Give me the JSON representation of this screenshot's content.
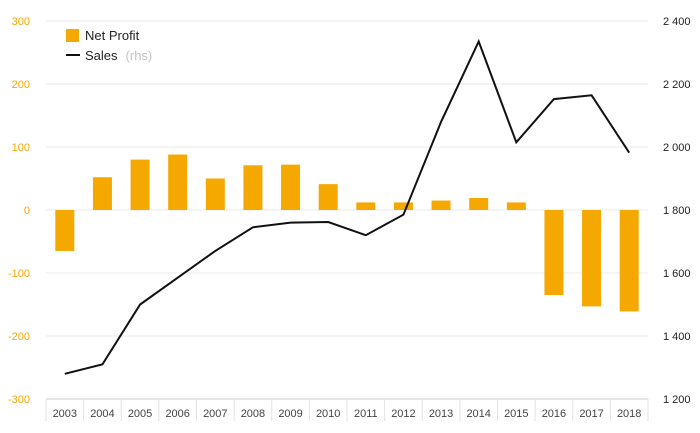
{
  "chart_data": {
    "type": "bar+line",
    "categories": [
      "2003",
      "2004",
      "2005",
      "2006",
      "2007",
      "2008",
      "2009",
      "2010",
      "2011",
      "2012",
      "2013",
      "2014",
      "2015",
      "2016",
      "2017",
      "2018"
    ],
    "series": [
      {
        "name": "Net Profit",
        "type": "bar",
        "axis": "left",
        "color": "#f5a800",
        "values": [
          -65,
          52,
          80,
          88,
          50,
          71,
          72,
          41,
          12,
          12,
          15,
          19,
          12,
          -135,
          -153,
          -161
        ]
      },
      {
        "name": "Sales",
        "name_note": "(rhs)",
        "type": "line",
        "axis": "right",
        "color": "#111111",
        "values": [
          1280,
          1310,
          1500,
          1585,
          1670,
          1745,
          1760,
          1762,
          1720,
          1785,
          2080,
          2335,
          2015,
          2152,
          2164,
          1982
        ]
      }
    ],
    "y_left": {
      "min": -300,
      "max": 300,
      "ticks": [
        "-300",
        "-200",
        "-100",
        "0",
        "100",
        "200",
        "300"
      ],
      "tick_values": [
        -300,
        -200,
        -100,
        0,
        100,
        200,
        300
      ]
    },
    "y_right": {
      "min": 1200,
      "max": 2400,
      "ticks": [
        "1 200",
        "1 400",
        "1 600",
        "1 800",
        "2 000",
        "2 200",
        "2 400"
      ],
      "tick_values": [
        1200,
        1400,
        1600,
        1800,
        2000,
        2200,
        2400
      ]
    },
    "grid": true,
    "legend_position": "top-left"
  }
}
